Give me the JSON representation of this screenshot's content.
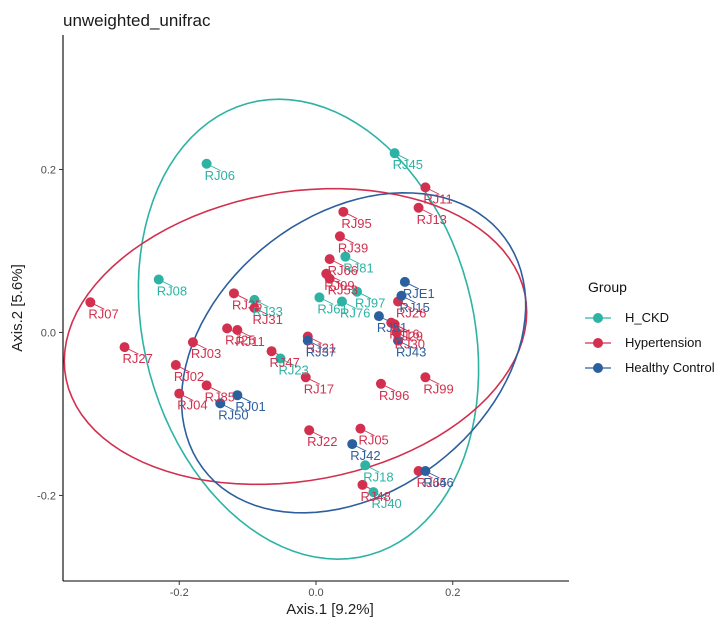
{
  "chart_data": {
    "type": "scatter",
    "title": "unweighted_unifrac",
    "xlabel": "Axis.1   [9.2%]",
    "ylabel": "Axis.2   [5.6%]",
    "xlim": [
      -0.37,
      0.37
    ],
    "ylim": [
      -0.305,
      0.365
    ],
    "xticks": [
      {
        "v": -0.2,
        "label": "-0.2"
      },
      {
        "v": 0.0,
        "label": "0.0"
      },
      {
        "v": 0.2,
        "label": "0.2"
      }
    ],
    "yticks": [
      {
        "v": -0.2,
        "label": "-0.2"
      },
      {
        "v": 0.0,
        "label": "0.0"
      },
      {
        "v": 0.2,
        "label": "0.2"
      }
    ],
    "grid": false,
    "legend_position": "right",
    "legend_title": "Group",
    "series": [
      {
        "name": "H_CKD",
        "color": "#2db3a4",
        "points": [
          {
            "label": "RJ06",
            "x": -0.16,
            "y": 0.207
          },
          {
            "label": "RJ08",
            "x": -0.23,
            "y": 0.065
          },
          {
            "label": "RJ45",
            "x": 0.115,
            "y": 0.22
          },
          {
            "label": "RJ97",
            "x": 0.06,
            "y": 0.05
          },
          {
            "label": "RJ81",
            "x": 0.043,
            "y": 0.093
          },
          {
            "label": "RJ61",
            "x": 0.005,
            "y": 0.043
          },
          {
            "label": "RJ76",
            "x": 0.038,
            "y": 0.038
          },
          {
            "label": "RJ23",
            "x": -0.052,
            "y": -0.032
          },
          {
            "label": "RJ33",
            "x": -0.09,
            "y": 0.04
          },
          {
            "label": "RJ18",
            "x": 0.072,
            "y": -0.163
          },
          {
            "label": "RJ40",
            "x": 0.084,
            "y": -0.196
          }
        ],
        "ellipse": {
          "cx": -0.011,
          "cy": 0.004,
          "rx": 0.293,
          "ry": 0.236,
          "angle_deg": 117
        }
      },
      {
        "name": "Hypertension",
        "color": "#d2304e",
        "points": [
          {
            "label": "RJ07",
            "x": -0.33,
            "y": 0.037
          },
          {
            "label": "RJ27",
            "x": -0.28,
            "y": -0.018
          },
          {
            "label": "RJ03",
            "x": -0.18,
            "y": -0.012
          },
          {
            "label": "RJ02",
            "x": -0.205,
            "y": -0.04
          },
          {
            "label": "RJ04",
            "x": -0.2,
            "y": -0.075
          },
          {
            "label": "RJ85",
            "x": -0.16,
            "y": -0.065
          },
          {
            "label": "RJ35",
            "x": -0.12,
            "y": 0.048
          },
          {
            "label": "RJ31",
            "x": -0.09,
            "y": 0.03
          },
          {
            "label": "RJ25",
            "x": -0.13,
            "y": 0.005
          },
          {
            "label": "RJ11",
            "x": -0.115,
            "y": 0.003
          },
          {
            "label": "RJ47",
            "x": -0.065,
            "y": -0.023
          },
          {
            "label": "RJ95",
            "x": 0.04,
            "y": 0.148
          },
          {
            "label": "RJ39",
            "x": 0.035,
            "y": 0.118
          },
          {
            "label": "RJ66",
            "x": 0.02,
            "y": 0.09
          },
          {
            "label": "RJ09",
            "x": 0.015,
            "y": 0.072
          },
          {
            "label": "RJ53",
            "x": 0.02,
            "y": 0.066
          },
          {
            "label": "RJ21",
            "x": -0.012,
            "y": -0.005
          },
          {
            "label": "RJ17",
            "x": -0.015,
            "y": -0.055
          },
          {
            "label": "RJ22",
            "x": -0.01,
            "y": -0.12
          },
          {
            "label": "RJ05",
            "x": 0.065,
            "y": -0.118
          },
          {
            "label": "RJ96",
            "x": 0.095,
            "y": -0.063
          },
          {
            "label": "RJ29",
            "x": 0.115,
            "y": 0.01
          },
          {
            "label": "RJ16",
            "x": 0.11,
            "y": 0.012
          },
          {
            "label": "RJ26",
            "x": 0.12,
            "y": 0.038
          },
          {
            "label": "RJ11",
            "x": 0.16,
            "y": 0.178
          },
          {
            "label": "RJ13",
            "x": 0.15,
            "y": 0.153
          },
          {
            "label": "RJ30",
            "x": 0.118,
            "y": 0.0
          },
          {
            "label": "RJ99",
            "x": 0.16,
            "y": -0.055
          },
          {
            "label": "RJ65",
            "x": 0.15,
            "y": -0.17
          },
          {
            "label": "RJ48",
            "x": 0.068,
            "y": -0.187
          }
        ],
        "ellipse": {
          "cx": -0.03,
          "cy": -0.005,
          "rx": 0.34,
          "ry": 0.178,
          "angle_deg": 7
        }
      },
      {
        "name": "Healthy Control",
        "color": "#2c5f9e",
        "points": [
          {
            "label": "RJ01",
            "x": -0.115,
            "y": -0.077
          },
          {
            "label": "RJ50",
            "x": -0.14,
            "y": -0.087
          },
          {
            "label": "RJ37",
            "x": -0.012,
            "y": -0.01
          },
          {
            "label": "RJ51",
            "x": 0.092,
            "y": 0.02
          },
          {
            "label": "RJE1",
            "x": 0.13,
            "y": 0.062
          },
          {
            "label": "RJ15",
            "x": 0.125,
            "y": 0.045
          },
          {
            "label": "RJ43",
            "x": 0.12,
            "y": -0.01
          },
          {
            "label": "RJ42",
            "x": 0.053,
            "y": -0.137
          },
          {
            "label": "RJ46",
            "x": 0.16,
            "y": -0.17
          }
        ],
        "ellipse": {
          "cx": 0.055,
          "cy": -0.025,
          "rx": 0.265,
          "ry": 0.178,
          "angle_deg": 25
        }
      }
    ]
  }
}
